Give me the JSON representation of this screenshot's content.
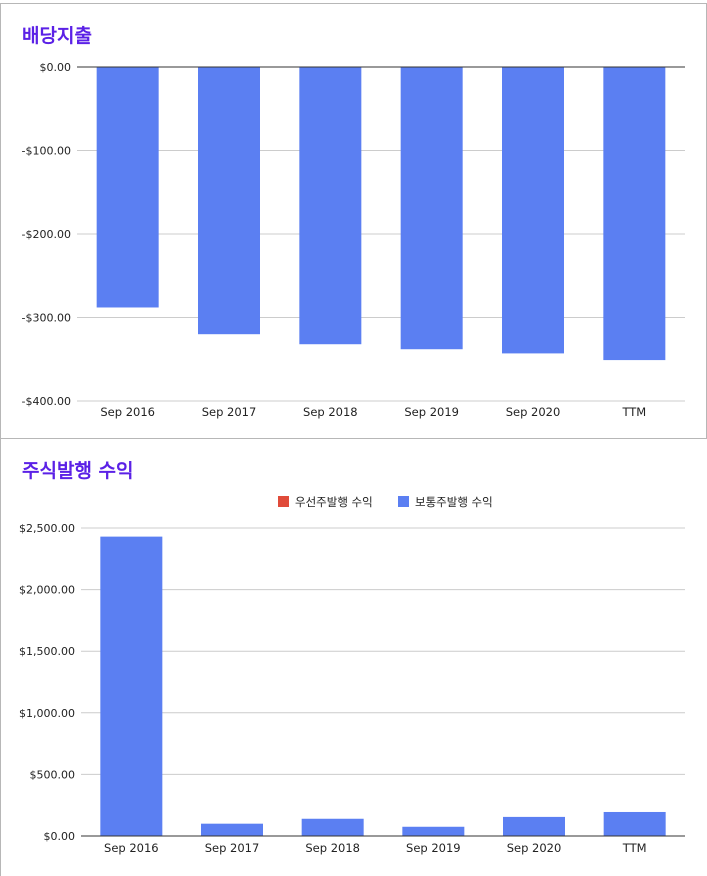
{
  "chart_data": [
    {
      "type": "bar",
      "title": "배당지출",
      "categories": [
        "Sep 2016",
        "Sep 2017",
        "Sep 2018",
        "Sep 2019",
        "Sep 2020",
        "TTM"
      ],
      "series": [
        {
          "values": [
            -288,
            -320,
            -332,
            -338,
            -343,
            -351
          ],
          "color": "#5b7ff2"
        }
      ],
      "yticks": [
        "$0.00",
        "-$100.00",
        "-$200.00",
        "-$300.00",
        "-$400.00"
      ],
      "ylim": [
        -400,
        0
      ],
      "grid": true
    },
    {
      "type": "bar",
      "title": "주식발행 수익",
      "categories": [
        "Sep 2016",
        "Sep 2017",
        "Sep 2018",
        "Sep 2019",
        "Sep 2020",
        "TTM"
      ],
      "series": [
        {
          "name": "우선주발행 수익",
          "values": [
            0,
            0,
            0,
            0,
            0,
            0
          ],
          "color": "#e04b3a"
        },
        {
          "name": "보통주발행 수익",
          "values": [
            2430,
            100,
            140,
            75,
            155,
            195
          ],
          "color": "#5b7ff2"
        }
      ],
      "yticks": [
        "$2,500.00",
        "$2,000.00",
        "$1,500.00",
        "$1,000.00",
        "$500.00",
        "$0.00"
      ],
      "ylim": [
        0,
        2500
      ],
      "legend": "top",
      "grid": true
    }
  ]
}
